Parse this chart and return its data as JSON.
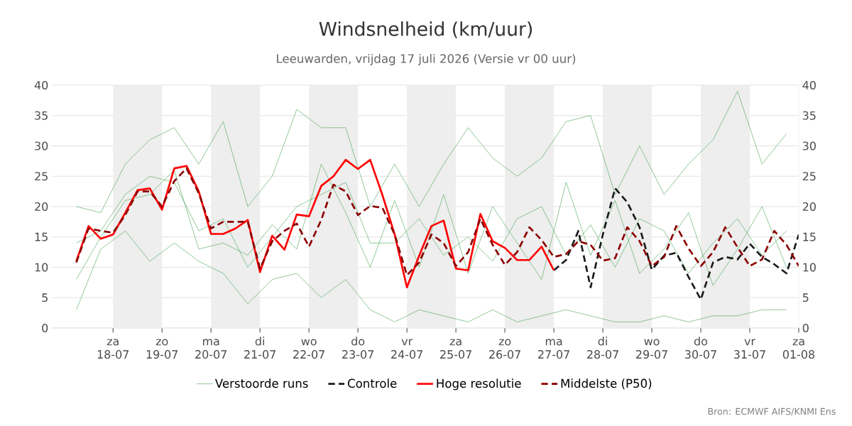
{
  "chart_data": {
    "type": "line",
    "title": "Windsnelheid (km/uur)",
    "subtitle": "Leeuwarden, vrijdag 17 juli 2026 (Versie vr 00 uur)",
    "xlim": [
      "2026-07-16T18:00",
      "2026-08-01T00:00"
    ],
    "xticks": [
      {
        "value": "2026-07-18",
        "label": "za 18-07"
      },
      {
        "value": "2026-07-19",
        "label": "zo 19-07"
      },
      {
        "value": "2026-07-20",
        "label": "ma 20-07"
      },
      {
        "value": "2026-07-21",
        "label": "di 21-07"
      },
      {
        "value": "2026-07-22",
        "label": "wo 22-07"
      },
      {
        "value": "2026-07-23",
        "label": "do 23-07"
      },
      {
        "value": "2026-07-24",
        "label": "vr 24-07"
      },
      {
        "value": "2026-07-25",
        "label": "za 25-07"
      },
      {
        "value": "2026-07-26",
        "label": "zo 26-07"
      },
      {
        "value": "2026-07-27",
        "label": "ma 27-07"
      },
      {
        "value": "2026-07-28",
        "label": "di 28-07"
      },
      {
        "value": "2026-07-29",
        "label": "wo 29-07"
      },
      {
        "value": "2026-07-30",
        "label": "do 30-07"
      },
      {
        "value": "2026-07-31",
        "label": "vr 31-07"
      },
      {
        "value": "2026-08-01",
        "label": "za 01-08"
      }
    ],
    "ylim": [
      0,
      40
    ],
    "yticks": [
      0,
      5,
      10,
      15,
      20,
      25,
      30,
      35,
      40
    ],
    "y2lim": [
      0,
      40
    ],
    "y2ticks": [
      0,
      5,
      10,
      15,
      20,
      25,
      30,
      35,
      40
    ],
    "grid": "y",
    "legend": "bottom",
    "marker": "none",
    "bands": [
      {
        "axis": "x",
        "from": "2026-07-18",
        "to": "2026-07-19",
        "color": "#eeeeee"
      },
      {
        "axis": "x",
        "from": "2026-07-20",
        "to": "2026-07-21",
        "color": "#eeeeee"
      },
      {
        "axis": "x",
        "from": "2026-07-22",
        "to": "2026-07-23",
        "color": "#eeeeee"
      },
      {
        "axis": "x",
        "from": "2026-07-24",
        "to": "2026-07-25",
        "color": "#eeeeee"
      },
      {
        "axis": "x",
        "from": "2026-07-26",
        "to": "2026-07-27",
        "color": "#eeeeee"
      },
      {
        "axis": "x",
        "from": "2026-07-28",
        "to": "2026-07-29",
        "color": "#eeeeee"
      },
      {
        "axis": "x",
        "from": "2026-07-30",
        "to": "2026-07-31",
        "color": "#eeeeee"
      }
    ],
    "x": [
      "2026-07-17T06:00",
      "2026-07-17T18:00",
      "2026-07-18T06:00",
      "2026-07-18T18:00",
      "2026-07-19T06:00",
      "2026-07-19T18:00",
      "2026-07-20T06:00",
      "2026-07-20T18:00",
      "2026-07-21T06:00",
      "2026-07-21T18:00",
      "2026-07-22T06:00",
      "2026-07-22T18:00",
      "2026-07-23T06:00",
      "2026-07-23T18:00",
      "2026-07-24T06:00",
      "2026-07-24T18:00",
      "2026-07-25T06:00",
      "2026-07-25T18:00",
      "2026-07-26T06:00",
      "2026-07-26T18:00",
      "2026-07-27T06:00",
      "2026-07-27T18:00",
      "2026-07-28T06:00",
      "2026-07-28T18:00",
      "2026-07-29T06:00",
      "2026-07-29T18:00",
      "2026-07-30T06:00",
      "2026-07-30T18:00",
      "2026-07-31T06:00",
      "2026-07-31T18:00"
    ],
    "series": [
      {
        "name": "Verstoorde runs",
        "color": "#3a9e45",
        "line_style": "solid",
        "values": [
          20,
          19,
          27,
          31,
          33,
          27,
          34,
          20,
          25,
          36,
          33,
          33,
          20,
          27,
          20,
          27,
          33,
          28,
          25,
          28,
          34,
          35,
          22,
          30,
          22,
          27,
          31,
          39,
          27,
          32
        ]
      },
      {
        "color": "#3a9e45",
        "line_style": "solid",
        "values": [
          3,
          13,
          16,
          11,
          14,
          11,
          9,
          4,
          8,
          9,
          5,
          8,
          3,
          1,
          3,
          2,
          1,
          3,
          1,
          2,
          3,
          2,
          1,
          1,
          2,
          1,
          2,
          2,
          3,
          3
        ]
      },
      {
        "color": "#3a9e45",
        "line_style": "solid",
        "values": [
          14,
          16,
          22,
          25,
          24,
          16,
          18,
          10,
          15,
          20,
          22,
          24,
          14,
          14,
          18,
          12,
          15,
          11,
          18,
          20,
          12,
          17,
          10,
          18,
          16,
          9,
          14,
          18,
          12,
          16
        ]
      },
      {
        "color": "#3a9e45",
        "line_style": "solid",
        "values": [
          8,
          15,
          21,
          22,
          26,
          13,
          14,
          12,
          17,
          13,
          27,
          19,
          10,
          21,
          10,
          22,
          9,
          20,
          14,
          8,
          24,
          12,
          21,
          9,
          13,
          19,
          7,
          13,
          20,
          10
        ]
      },
      {
        "name": "Controle",
        "color": "#1a1a1a",
        "line_style": "dashed",
        "x": [
          "2026-07-27T00:00",
          "2026-07-27T06:00",
          "2026-07-27T12:00",
          "2026-07-27T18:00",
          "2026-07-28T00:00",
          "2026-07-28T06:00",
          "2026-07-28T12:00",
          "2026-07-28T18:00",
          "2026-07-29T00:00",
          "2026-07-29T06:00",
          "2026-07-29T12:00",
          "2026-07-29T18:00",
          "2026-07-30T00:00",
          "2026-07-30T06:00",
          "2026-07-30T12:00",
          "2026-07-30T18:00",
          "2026-07-31T00:00",
          "2026-07-31T06:00",
          "2026-07-31T12:00",
          "2026-07-31T18:00",
          "2026-08-01T00:00"
        ],
        "values": [
          9.5,
          11.2,
          16,
          6.7,
          15.4,
          23,
          20.7,
          16.6,
          9.6,
          11.9,
          12.4,
          8.4,
          4.7,
          10.8,
          11.7,
          11.3,
          13.9,
          11.7,
          10.5,
          9,
          15.4
        ]
      },
      {
        "name": "Hoge resolutie",
        "color": "#ff0000",
        "line_style": "solid",
        "x": [
          "2026-07-17T06:00",
          "2026-07-17T12:00",
          "2026-07-17T18:00",
          "2026-07-18T00:00",
          "2026-07-18T06:00",
          "2026-07-18T12:00",
          "2026-07-18T18:00",
          "2026-07-19T00:00",
          "2026-07-19T06:00",
          "2026-07-19T12:00",
          "2026-07-19T18:00",
          "2026-07-20T00:00",
          "2026-07-20T06:00",
          "2026-07-20T12:00",
          "2026-07-20T18:00",
          "2026-07-21T00:00",
          "2026-07-21T06:00",
          "2026-07-21T12:00",
          "2026-07-21T18:00",
          "2026-07-22T00:00",
          "2026-07-22T06:00",
          "2026-07-22T12:00",
          "2026-07-22T18:00",
          "2026-07-23T00:00",
          "2026-07-23T06:00",
          "2026-07-23T12:00",
          "2026-07-23T18:00",
          "2026-07-24T00:00",
          "2026-07-24T06:00",
          "2026-07-24T12:00",
          "2026-07-24T18:00",
          "2026-07-25T00:00",
          "2026-07-25T06:00",
          "2026-07-25T12:00",
          "2026-07-25T18:00",
          "2026-07-26T00:00",
          "2026-07-26T06:00",
          "2026-07-26T12:00",
          "2026-07-26T18:00",
          "2026-07-27T00:00"
        ],
        "values": [
          11,
          16.8,
          14.7,
          15.4,
          19,
          22.7,
          23,
          19.5,
          26.3,
          26.7,
          22.5,
          15.5,
          15.5,
          16.4,
          17.8,
          9.2,
          15.2,
          12.9,
          18.7,
          18.4,
          23.4,
          25,
          27.7,
          26.2,
          27.7,
          21.9,
          15.4,
          6.7,
          11.9,
          16.8,
          17.7,
          9.8,
          9.5,
          18.8,
          14.3,
          13.2,
          11.2,
          11.2,
          13.4,
          9.5
        ]
      },
      {
        "name": "Middelste (P50)",
        "color": "#8b0000",
        "line_style": "dashed",
        "x": [
          "2026-07-17T06:00",
          "2026-07-17T12:00",
          "2026-07-17T18:00",
          "2026-07-18T00:00",
          "2026-07-18T06:00",
          "2026-07-18T12:00",
          "2026-07-18T18:00",
          "2026-07-19T00:00",
          "2026-07-19T06:00",
          "2026-07-19T12:00",
          "2026-07-19T18:00",
          "2026-07-20T00:00",
          "2026-07-20T06:00",
          "2026-07-20T12:00",
          "2026-07-20T18:00",
          "2026-07-21T00:00",
          "2026-07-21T06:00",
          "2026-07-21T12:00",
          "2026-07-21T18:00",
          "2026-07-22T00:00",
          "2026-07-22T06:00",
          "2026-07-22T12:00",
          "2026-07-22T18:00",
          "2026-07-23T00:00",
          "2026-07-23T06:00",
          "2026-07-23T12:00",
          "2026-07-23T18:00",
          "2026-07-24T00:00",
          "2026-07-24T06:00",
          "2026-07-24T12:00",
          "2026-07-24T18:00",
          "2026-07-25T00:00",
          "2026-07-25T06:00",
          "2026-07-25T12:00",
          "2026-07-25T18:00",
          "2026-07-26T00:00",
          "2026-07-26T06:00",
          "2026-07-26T12:00",
          "2026-07-26T18:00",
          "2026-07-27T00:00",
          "2026-07-27T06:00",
          "2026-07-27T12:00",
          "2026-07-27T18:00",
          "2026-07-28T00:00",
          "2026-07-28T06:00",
          "2026-07-28T12:00",
          "2026-07-28T18:00",
          "2026-07-29T00:00",
          "2026-07-29T06:00",
          "2026-07-29T12:00",
          "2026-07-29T18:00",
          "2026-07-30T00:00",
          "2026-07-30T06:00",
          "2026-07-30T12:00",
          "2026-07-30T18:00",
          "2026-07-31T00:00",
          "2026-07-31T06:00",
          "2026-07-31T12:00",
          "2026-07-31T18:00",
          "2026-08-01T00:00"
        ],
        "values": [
          10.8,
          16.4,
          16,
          15.7,
          18.6,
          22.5,
          22.5,
          20,
          24.2,
          26.3,
          22.2,
          16.4,
          17.5,
          17.5,
          17.5,
          9.8,
          14.3,
          16,
          17.2,
          13.4,
          17.8,
          23.6,
          22.5,
          18.6,
          20.1,
          19.8,
          15.4,
          8.7,
          10.8,
          15.4,
          14,
          10.2,
          12.5,
          18,
          13.7,
          10.4,
          12.5,
          16.6,
          14.5,
          11.7,
          12.2,
          14.3,
          13.7,
          11.1,
          11.5,
          16.6,
          14.3,
          10.2,
          11.7,
          16.8,
          13.1,
          10.2,
          12.5,
          16.6,
          13.3,
          10.2,
          11.3,
          16,
          13.7,
          10.2
        ]
      }
    ],
    "annotations": [
      "Bron: ECMWF AIFS/KNMI Ens"
    ]
  }
}
